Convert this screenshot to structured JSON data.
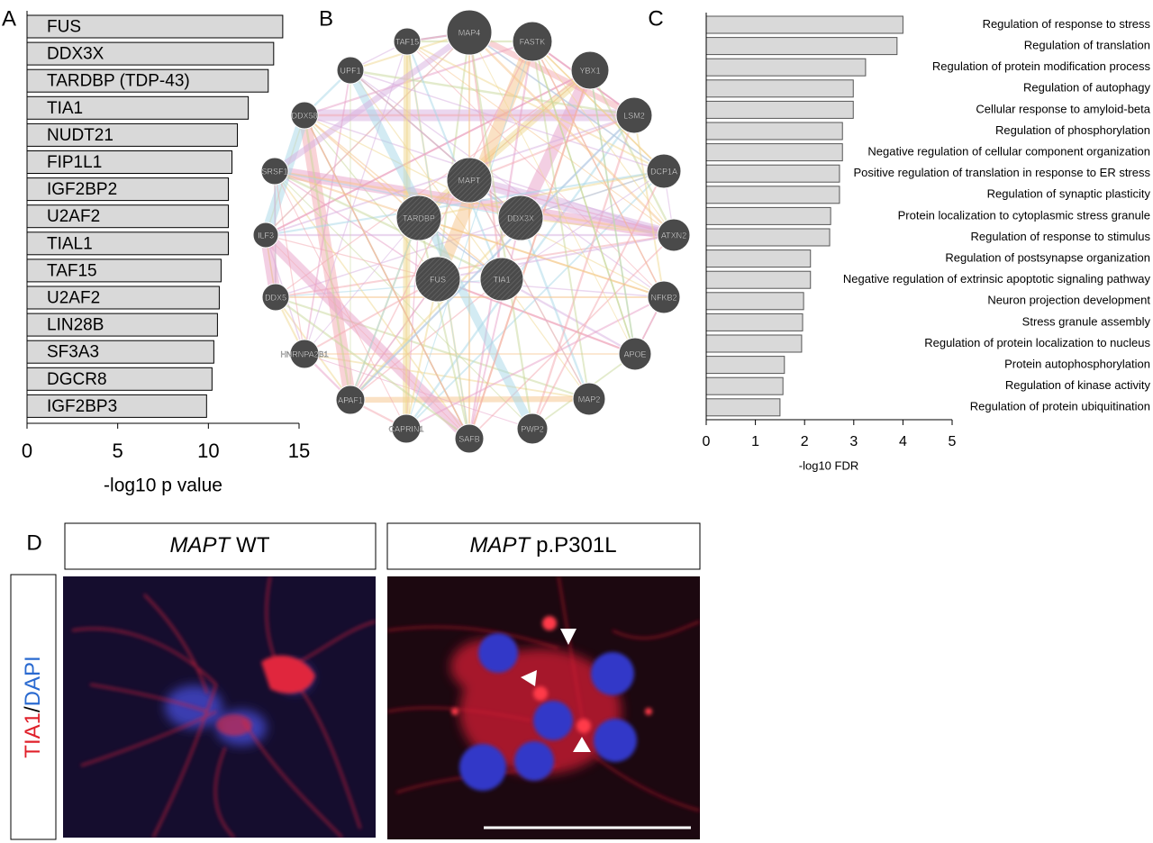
{
  "chart_data": [
    {
      "type": "barh",
      "panel": "A",
      "xlabel": "-log10 p value",
      "categories": [
        "FUS",
        "DDX3X",
        "TARDBP (TDP-43)",
        "TIA1",
        "NUDT21",
        "FIP1L1",
        "IGF2BP2",
        "U2AF2",
        "TIAL1",
        "TAF15",
        "U2AF2",
        "LIN28B",
        "SF3A3",
        "DGCR8",
        "IGF2BP3"
      ],
      "values": [
        14.1,
        13.6,
        13.3,
        12.2,
        11.6,
        11.3,
        11.1,
        11.1,
        11.1,
        10.7,
        10.6,
        10.5,
        10.3,
        10.2,
        9.9
      ],
      "color": "#d9d9d9",
      "xlim": [
        0,
        15
      ],
      "xticks": [
        0,
        5,
        10,
        15
      ]
    },
    {
      "type": "barh",
      "panel": "C",
      "xlabel": "-log10 FDR",
      "categories": [
        "Regulation of response to stress",
        "Regulation of translation",
        "Regulation of protein modification process",
        "Regulation of autophagy",
        "Cellular response to amyloid-beta",
        "Regulation of phosphorylation",
        "Negative regulation of cellular component organization",
        "Positive regulation of translation in response to ER stress",
        "Regulation of synaptic plasticity",
        "Protein localization to cytoplasmic stress granule",
        "Regulation of response to stimulus",
        "Regulation of postsynapse organization",
        "Negative regulation of extrinsic apoptotic signaling pathway",
        "Neuron projection development",
        "Stress granule assembly",
        "Regulation of protein localization to nucleus",
        "Protein autophosphorylation",
        "Regulation of kinase activity",
        "Regulation of protein ubiquitination"
      ],
      "values": [
        4.0,
        3.88,
        3.24,
        2.99,
        2.99,
        2.77,
        2.77,
        2.71,
        2.71,
        2.53,
        2.51,
        2.12,
        2.12,
        1.98,
        1.96,
        1.94,
        1.59,
        1.56,
        1.5
      ],
      "color": "#d9d9d9",
      "xlim": [
        0,
        5
      ],
      "xticks": [
        0,
        1,
        2,
        3,
        4,
        5
      ]
    }
  ],
  "network": {
    "panel": "B",
    "nodes": [
      "MAP4",
      "FASTK",
      "YBX1",
      "LSM2",
      "DCP1A",
      "ATXN2",
      "NFKB2",
      "APOE",
      "MAP2",
      "PWP2",
      "SAFB",
      "CAPRIN1",
      "APAF1",
      "HNRNPA2B1",
      "DDX5",
      "ILF3",
      "SRSF1",
      "DDX58",
      "UPF1",
      "TAF15",
      "MAPT",
      "TARDBP",
      "DDX3X",
      "FUS",
      "TIA1"
    ]
  },
  "micrographs": {
    "panel": "D",
    "columns": [
      {
        "gene": "MAPT",
        "condition": "WT"
      },
      {
        "gene": "MAPT",
        "condition": "p.P301L"
      }
    ],
    "row_label": {
      "stain1": "TIA1",
      "separator": "/",
      "stain2": "DAPI"
    }
  }
}
